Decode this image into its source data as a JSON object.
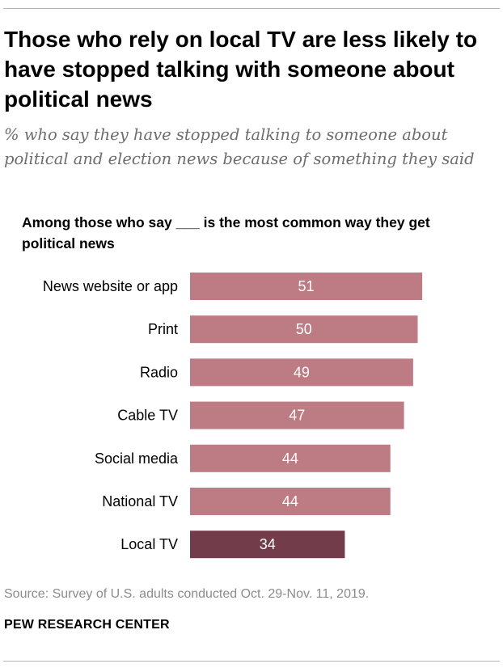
{
  "chart_data": {
    "type": "bar",
    "orientation": "horizontal",
    "title": "Those who rely on local TV are less likely to have stopped talking with someone about political news",
    "subtitle": "% who say they have stopped talking to someone about political and election news because of something they said",
    "header": "Among those who say ___ is the most common way they get political news",
    "categories": [
      "News website or app",
      "Print",
      "Radio",
      "Cable TV",
      "Social media",
      "National TV",
      "Local TV"
    ],
    "values": [
      51,
      50,
      49,
      47,
      44,
      44,
      34
    ],
    "data_labels": [
      "51",
      "50",
      "49",
      "47",
      "44",
      "44",
      "34"
    ],
    "colors": [
      "#bd7b84",
      "#bd7b84",
      "#bd7b84",
      "#bd7b84",
      "#bd7b84",
      "#bd7b84",
      "#723c4a"
    ],
    "label_color": "#ffffff",
    "xlim": [
      0,
      100
    ],
    "grid": false,
    "legend": "none"
  },
  "source": "Source: Survey of U.S. adults conducted Oct. 29-Nov. 11, 2019.",
  "brand": "PEW RESEARCH CENTER"
}
